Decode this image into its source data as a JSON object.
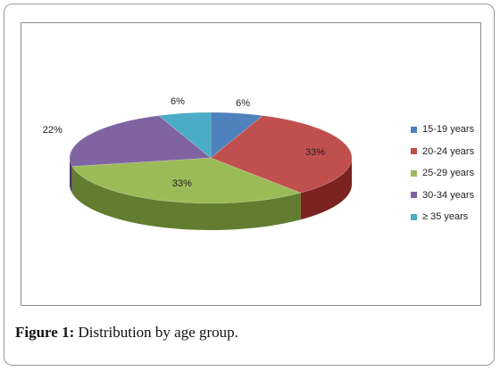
{
  "chart_data": {
    "type": "pie",
    "title": "",
    "categories": [
      "15-19 years",
      "20-24 years",
      "25-29 years",
      "30-34 years",
      "≥ 35 years"
    ],
    "values": [
      6,
      33,
      33,
      22,
      6
    ],
    "data_labels": [
      "6%",
      "33%",
      "33%",
      "22%",
      "6%"
    ],
    "colors": [
      "#4f81bd",
      "#c0504d",
      "#9bbb59",
      "#8064a2",
      "#4bacc6"
    ],
    "side_colors": [
      "#2c5482",
      "#7b2321",
      "#627d30",
      "#4b3766",
      "#257d93"
    ],
    "legend_position": "right",
    "style": "3d"
  },
  "caption": {
    "label": "Figure 1:",
    "text": "Distribution by age group."
  }
}
